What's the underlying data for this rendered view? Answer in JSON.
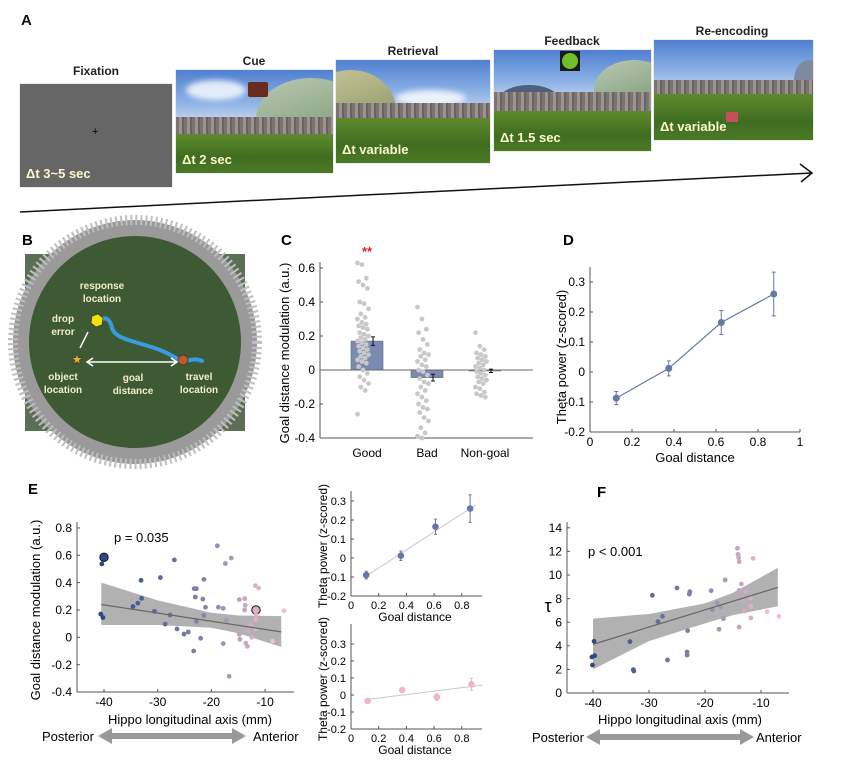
{
  "panels": {
    "a": "A",
    "b": "B",
    "c": "C",
    "d": "D",
    "e": "E",
    "f": "F"
  },
  "panel_a": {
    "stages": [
      {
        "title": "Fixation",
        "duration": "Δt  3~5 sec"
      },
      {
        "title": "Cue",
        "duration": "Δt 2 sec"
      },
      {
        "title": "Retrieval",
        "duration": "Δt  variable"
      },
      {
        "title": "Feedback",
        "duration": "Δt 1.5 sec"
      },
      {
        "title": "Re-encoding",
        "duration": "Δt  variable"
      }
    ],
    "fixation_symbol": "+",
    "colors": {
      "fixation_bg": "#666666",
      "duration_text": "#fdf6d0",
      "feedback_icon": "#6fbf2a"
    }
  },
  "panel_b": {
    "response_location": [
      "response",
      "location"
    ],
    "drop_error": [
      "drop",
      "error"
    ],
    "object_location": [
      "object",
      "location"
    ],
    "goal_distance": [
      "goal",
      "distance"
    ],
    "travel_location": [
      "travel",
      "location"
    ],
    "colors": {
      "path": "#3b9be0",
      "response_marker": "#f5e10a",
      "object_marker": "#f2b01e",
      "travel_marker": "#c0582a"
    }
  },
  "chart_data": [
    {
      "id": "C",
      "type": "bar",
      "categories": [
        "Good",
        "Bad",
        "Non-goal"
      ],
      "values": [
        0.17,
        -0.045,
        -0.005
      ],
      "errors": [
        0.025,
        0.02,
        0.01
      ],
      "significance": [
        "**",
        "",
        ""
      ],
      "points": [
        [
          0.63,
          0.62,
          0.54,
          0.52,
          0.5,
          0.48,
          0.4,
          0.39,
          0.36,
          0.33,
          0.31,
          0.3,
          0.28,
          0.27,
          0.26,
          0.25,
          0.24,
          0.22,
          0.21,
          0.2,
          0.19,
          0.18,
          0.17,
          0.16,
          0.15,
          0.14,
          0.13,
          0.12,
          0.11,
          0.1,
          0.09,
          0.08,
          0.07,
          0.06,
          0.05,
          0.04,
          0.02,
          0.0,
          -0.02,
          -0.04,
          -0.06,
          -0.08,
          -0.1,
          -0.12,
          -0.26
        ],
        [
          0.37,
          0.3,
          0.24,
          0.22,
          0.18,
          0.15,
          0.12,
          0.1,
          0.09,
          0.08,
          0.06,
          0.05,
          0.03,
          0.02,
          0.0,
          -0.01,
          -0.03,
          -0.05,
          -0.07,
          -0.08,
          -0.1,
          -0.12,
          -0.14,
          -0.16,
          -0.18,
          -0.2,
          -0.22,
          -0.23,
          -0.25,
          -0.28,
          -0.3,
          -0.34,
          -0.37,
          -0.39,
          -0.4
        ],
        [
          0.22,
          0.14,
          0.12,
          0.1,
          0.09,
          0.08,
          0.07,
          0.06,
          0.05,
          0.04,
          0.03,
          0.02,
          0.01,
          0.0,
          -0.01,
          -0.02,
          -0.03,
          -0.04,
          -0.05,
          -0.06,
          -0.07,
          -0.08,
          -0.1,
          -0.11,
          -0.13,
          -0.14,
          -0.15,
          -0.16
        ]
      ],
      "ylabel": "Goal distance modulation (a.u.)",
      "ylim": [
        -0.4,
        0.65
      ],
      "yticks": [
        "0.6",
        "0.4",
        "0.2",
        "0",
        "-0.2",
        "-0.4"
      ],
      "colors": {
        "bar": "#7b8bb0",
        "points": "#c8c8c8",
        "significance": "#e0202a"
      }
    },
    {
      "id": "D",
      "type": "line",
      "x": [
        0.125,
        0.375,
        0.625,
        0.875
      ],
      "y": [
        -0.087,
        0.012,
        0.165,
        0.26
      ],
      "errors": [
        0.022,
        0.025,
        0.04,
        0.073
      ],
      "xlabel": "Goal distance",
      "ylabel": "Theta power (z-scored)",
      "xlim": [
        0,
        1
      ],
      "ylim": [
        -0.2,
        0.35
      ],
      "xticks": [
        "0",
        "0.2",
        "0.4",
        "0.6",
        "0.8",
        "1"
      ],
      "yticks": [
        "0.3",
        "0.2",
        "0.1",
        "0",
        "-0.1",
        "-0.2"
      ],
      "colors": {
        "line": "#6678a3"
      }
    },
    {
      "id": "E-main",
      "type": "scatter",
      "annotation": "p = 0.035",
      "xlabel": "Hippo longitudinal axis (mm)",
      "ylabel": "Goal distance modulation (a.u.)",
      "xlim": [
        -42,
        -6
      ],
      "ylim": [
        -0.4,
        0.82
      ],
      "xticks": [
        "-40",
        "-30",
        "-20",
        "-10"
      ],
      "yticks": [
        "0.8",
        "0.6",
        "0.4",
        "0.2",
        "0",
        "-0.2",
        "-0.4"
      ],
      "fit": {
        "x": [
          -40.5,
          -7
        ],
        "y": [
          0.24,
          0.04
        ]
      },
      "ci_band": {
        "x": [
          -40.5,
          -30,
          -20,
          -15,
          -7
        ],
        "upper": [
          0.4,
          0.27,
          0.18,
          0.16,
          0.155
        ],
        "lower": [
          0.09,
          0.09,
          0.07,
          0.03,
          -0.07
        ]
      },
      "highlighted": [
        0,
        50
      ],
      "points": [
        [
          -40,
          0.585
        ],
        [
          -40.4,
          0.537
        ],
        [
          -40.6,
          0.17
        ],
        [
          -40.2,
          0.145
        ],
        [
          -34.6,
          0.225
        ],
        [
          -33.7,
          0.25
        ],
        [
          -33,
          0.285
        ],
        [
          -33.1,
          0.417
        ],
        [
          -30.6,
          0.19
        ],
        [
          -29.5,
          0.437
        ],
        [
          -28.6,
          0.097
        ],
        [
          -27.7,
          0.163
        ],
        [
          -26.9,
          0.566
        ],
        [
          -26.4,
          0.061
        ],
        [
          -25.1,
          0.024
        ],
        [
          -24.3,
          0.039
        ],
        [
          -23.3,
          -0.1
        ],
        [
          -23.2,
          0.356
        ],
        [
          -22.8,
          0.356
        ],
        [
          -23,
          0.295
        ],
        [
          -22.8,
          0.117
        ],
        [
          -22,
          -0.007
        ],
        [
          -21.6,
          0.28
        ],
        [
          -21.4,
          0.424
        ],
        [
          -21.4,
          0.16
        ],
        [
          -21.1,
          0.22
        ],
        [
          -18.9,
          0.67
        ],
        [
          -18.7,
          0.22
        ],
        [
          -17.8,
          0.212
        ],
        [
          -17.8,
          -0.046
        ],
        [
          -17.4,
          0.54
        ],
        [
          -17.2,
          0.124
        ],
        [
          -16.7,
          -0.285
        ],
        [
          -16.3,
          0.58
        ],
        [
          -14.8,
          0.276
        ],
        [
          -14.8,
          0.022
        ],
        [
          -14.7,
          -0.015
        ],
        [
          -13.8,
          0.283
        ],
        [
          -13.8,
          0.2
        ],
        [
          -13.7,
          0.234
        ],
        [
          -13.7,
          0.09
        ],
        [
          -13.6,
          -0.044
        ],
        [
          -13.3,
          -0.066
        ],
        [
          -13.2,
          0.049
        ],
        [
          -12.7,
          0.09
        ],
        [
          -12.5,
          0.0
        ],
        [
          -11.8,
          0.378
        ],
        [
          -11.2,
          0.36
        ],
        [
          -11.8,
          0.13
        ],
        [
          -11.8,
          0.061
        ],
        [
          -11.7,
          0.2
        ],
        [
          -11.7,
          0.163
        ],
        [
          -8.6,
          -0.027
        ],
        [
          -6.5,
          0.195
        ]
      ],
      "axis_direction": {
        "left": "Posterior",
        "right": "Anterior"
      },
      "colors": {
        "posterior": "#2c4a85",
        "middle": "#8e88aa",
        "anterior": "#f4bfd0",
        "band": "#a8a8a8",
        "fit": "#666666"
      }
    },
    {
      "id": "E-top",
      "type": "line",
      "x": [
        0.11,
        0.36,
        0.61,
        0.86
      ],
      "y": [
        -0.09,
        0.012,
        0.165,
        0.26
      ],
      "errors": [
        0.02,
        0.025,
        0.04,
        0.073
      ],
      "fit": {
        "x": [
          0.1,
          0.9
        ],
        "y": [
          -0.1,
          0.28
        ]
      },
      "xlabel": "Goal distance",
      "ylabel": "Theta power (z-scored)",
      "xlim": [
        0,
        0.93
      ],
      "ylim": [
        -0.2,
        0.35
      ],
      "xticks": [
        "0",
        "0.2",
        "0.4",
        "0.6",
        "0.8"
      ],
      "yticks": [
        "0.3",
        "0.2",
        "0.1",
        "0",
        "-0.1",
        "-0.2"
      ],
      "colors": {
        "points": "#6678a3",
        "fit": "#c8c8c8"
      }
    },
    {
      "id": "E-bottom",
      "type": "line",
      "x": [
        0.12,
        0.37,
        0.62,
        0.87
      ],
      "y": [
        -0.035,
        0.03,
        -0.012,
        0.063
      ],
      "errors": [
        0.015,
        0.015,
        0.02,
        0.035
      ],
      "fit": {
        "x": [
          0.1,
          0.95
        ],
        "y": [
          -0.028,
          0.058
        ]
      },
      "xlabel": "Goal distance",
      "ylabel": "Theta power (z-scored)",
      "xlim": [
        0,
        0.93
      ],
      "ylim": [
        -0.2,
        0.35
      ],
      "xticks": [
        "0",
        "0.2",
        "0.4",
        "0.6",
        "0.8"
      ],
      "yticks": [
        "0.3",
        "0.2",
        "0.1",
        "0",
        "-0.1",
        "-0.2"
      ],
      "colors": {
        "points": "#f0b6c6",
        "fit": "#c8c8c8"
      }
    },
    {
      "id": "F",
      "type": "scatter",
      "annotation": "p < 0.001",
      "xlabel": "Hippo longitudinal axis (mm)",
      "ylabel": "τ",
      "xlim": [
        -44.5,
        -5
      ],
      "ylim": [
        0,
        14.5
      ],
      "xticks": [
        "-40",
        "-30",
        "-20",
        "-10"
      ],
      "yticks": [
        "14",
        "12",
        "10",
        "8",
        "6",
        "4",
        "2",
        "0"
      ],
      "fit": {
        "x": [
          -40,
          -7
        ],
        "y": [
          4.12,
          8.95
        ]
      },
      "ci_band": {
        "x": [
          -40,
          -30,
          -20,
          -15,
          -7
        ],
        "upper": [
          6.3,
          6.7,
          7.6,
          8.5,
          10.6
        ],
        "lower": [
          2.0,
          4.4,
          5.9,
          6.6,
          7.35
        ]
      },
      "points": [
        [
          -39.8,
          4.38
        ],
        [
          -40.2,
          3.05
        ],
        [
          -39.7,
          3.16
        ],
        [
          -40.1,
          2.37
        ],
        [
          -33.4,
          4.35
        ],
        [
          -32.8,
          1.98
        ],
        [
          -32.7,
          1.86
        ],
        [
          -29.4,
          8.28
        ],
        [
          -28.4,
          6.05
        ],
        [
          -27.6,
          6.5
        ],
        [
          -26.7,
          2.8
        ],
        [
          -25,
          8.9
        ],
        [
          -23.1,
          5.28
        ],
        [
          -23.2,
          3.47
        ],
        [
          -23.2,
          3.22
        ],
        [
          -22.8,
          8.39
        ],
        [
          -22.7,
          8.59
        ],
        [
          -18.9,
          8.67
        ],
        [
          -18.7,
          7.06
        ],
        [
          -17.8,
          7.63
        ],
        [
          -17.5,
          5.4
        ],
        [
          -17.2,
          7.29
        ],
        [
          -16.7,
          6.3
        ],
        [
          -16.4,
          9.58
        ],
        [
          -14.2,
          12.26
        ],
        [
          -14.1,
          11.75
        ],
        [
          -14,
          11.47
        ],
        [
          -13.9,
          11.13
        ],
        [
          -13.9,
          8.7
        ],
        [
          -14.1,
          8.33
        ],
        [
          -13.9,
          5.59
        ],
        [
          -13.5,
          9.24
        ],
        [
          -13.3,
          7.8
        ],
        [
          -12.9,
          6.95
        ],
        [
          -12.7,
          8.62
        ],
        [
          -11.9,
          8.05
        ],
        [
          -11.8,
          7.34
        ],
        [
          -11.8,
          6.36
        ],
        [
          -11.4,
          11.41
        ],
        [
          -8.9,
          6.89
        ],
        [
          -6.8,
          6.5
        ]
      ],
      "axis_direction": {
        "left": "Posterior",
        "right": "Anterior"
      }
    }
  ]
}
